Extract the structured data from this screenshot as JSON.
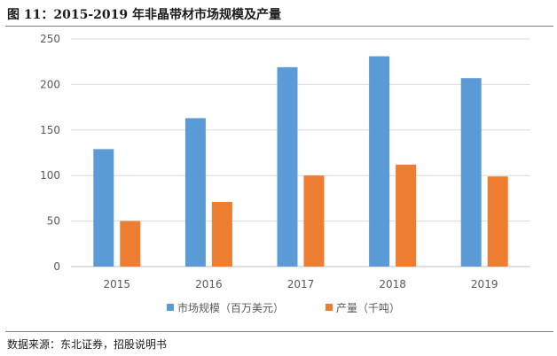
{
  "figure_title": "图 11：2015-2019 年非晶带材市场规模及产量",
  "source": "数据来源：东北证券，招股说明书",
  "colors": {
    "market": "#5b9bd5",
    "output": "#ed7d31",
    "grid": "#d9d9d9",
    "axis": "#bfbfbf"
  },
  "chart_data": {
    "type": "bar",
    "title": "2015-2019 年非晶带材市场规模及产量",
    "xlabel": "",
    "ylabel": "",
    "categories": [
      "2015",
      "2016",
      "2017",
      "2018",
      "2019"
    ],
    "series": [
      {
        "name": "市场规模（百万美元）",
        "values": [
          129,
          163,
          219,
          231,
          207
        ]
      },
      {
        "name": "产量（千吨）",
        "values": [
          50,
          71,
          100,
          112,
          99
        ]
      }
    ],
    "ylim": [
      0,
      250
    ],
    "yticks": [
      0,
      50,
      100,
      150,
      200,
      250
    ],
    "grid": true,
    "legend_position": "bottom-center"
  }
}
